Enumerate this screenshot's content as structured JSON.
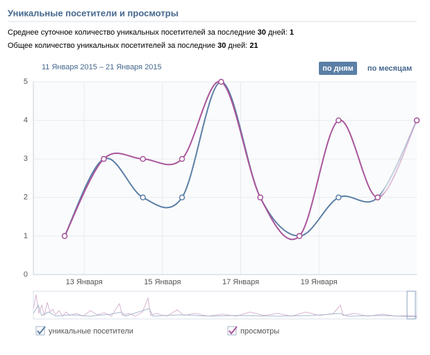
{
  "header": {
    "title": "Уникальные посетители и просмотры",
    "line1": {
      "text": "Среднее суточное количество уникальных посетителей за последние ",
      "days": "30",
      "mid": " дней: ",
      "value": "1"
    },
    "line2": {
      "text": "Общее количество уникальных посетителей за последние ",
      "days": "30",
      "mid": " дней: ",
      "value": "21"
    }
  },
  "controls": {
    "range": "11 Января 2015 – 21 Января 2015",
    "by_day": "по дням",
    "by_month": "по месяцам"
  },
  "chart_data": {
    "type": "line",
    "xlim": [
      -0.8,
      9
    ],
    "xticks": [
      {
        "value": 0.5,
        "label": "13 Января"
      },
      {
        "value": 2.5,
        "label": "15 Января"
      },
      {
        "value": 4.5,
        "label": "17 Января"
      },
      {
        "value": 6.5,
        "label": "19 Января"
      }
    ],
    "ylim": [
      0,
      5
    ],
    "yticks": [
      0,
      1,
      2,
      3,
      4,
      5
    ],
    "grid": true,
    "series": [
      {
        "name": "уникальные посетители",
        "color": "#5b7fa6",
        "values": [
          1,
          3,
          2,
          2,
          5,
          2,
          1,
          2,
          2,
          4
        ]
      },
      {
        "name": "просмотры",
        "color": "#a9559b",
        "values": [
          1,
          3,
          3,
          3,
          5,
          2,
          1,
          4,
          2,
          4
        ]
      }
    ]
  }
}
